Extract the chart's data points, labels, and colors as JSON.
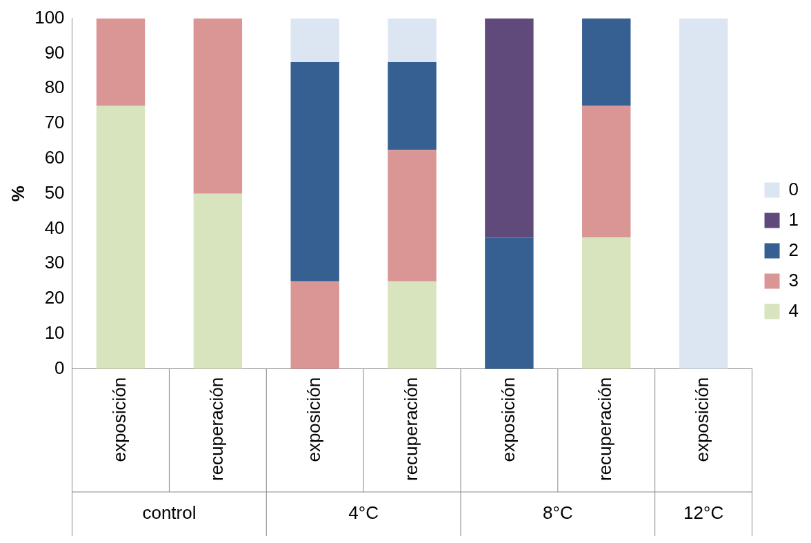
{
  "chart_data": {
    "type": "bar",
    "stacked": true,
    "ylabel": "%",
    "categories": [
      "exposición",
      "recuperación",
      "exposición",
      "recuperación",
      "exposición",
      "recuperación",
      "exposición"
    ],
    "series": [
      {
        "name": "4",
        "color": "#d7e4bd",
        "values": [
          75,
          50,
          0,
          25,
          0,
          37.5,
          0
        ]
      },
      {
        "name": "3",
        "color": "#d99694",
        "values": [
          25,
          50,
          25,
          37.5,
          0,
          37.5,
          0
        ]
      },
      {
        "name": "2",
        "color": "#376092",
        "values": [
          0,
          0,
          62.5,
          25,
          37.5,
          25,
          0
        ]
      },
      {
        "name": "1",
        "color": "#604a7b",
        "values": [
          0,
          0,
          0,
          0,
          62.5,
          0,
          0
        ]
      },
      {
        "name": "0",
        "color": "#dce6f2",
        "values": [
          0,
          0,
          12.5,
          12.5,
          0,
          0,
          100
        ]
      }
    ],
    "ylim": [
      0,
      100
    ],
    "yticks": [
      0,
      10,
      20,
      30,
      40,
      50,
      60,
      70,
      80,
      90,
      100
    ],
    "grid": false,
    "legend": "right",
    "annotations": [
      "control",
      "4°C",
      "8°C",
      "12°C"
    ]
  }
}
